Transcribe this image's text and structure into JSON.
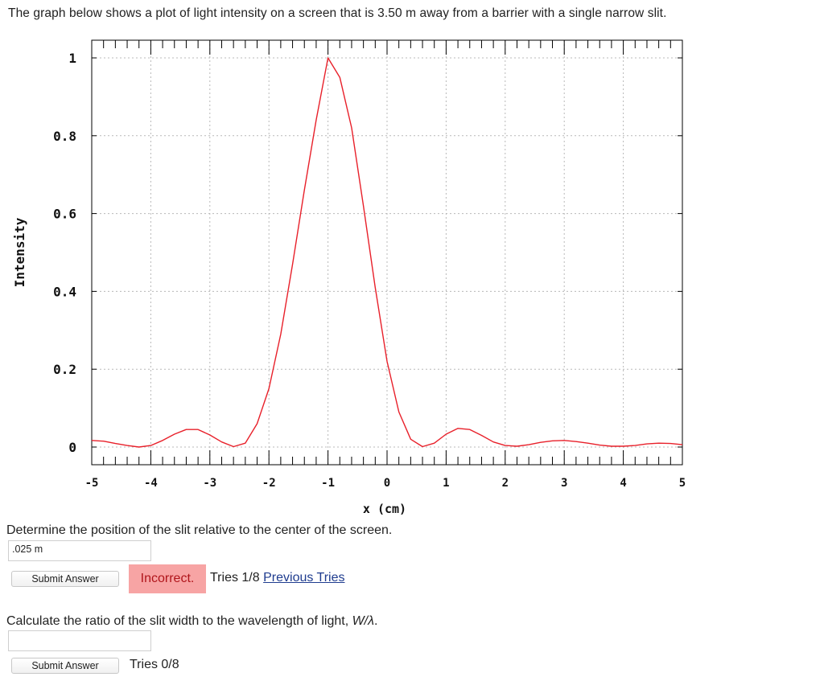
{
  "intro": "The graph below shows a plot of light intensity on a screen that is 3.50 m away from a barrier with a single narrow slit.",
  "chart_data": {
    "type": "line",
    "title": "",
    "xlabel": "x (cm)",
    "ylabel": "Intensity",
    "xlim": [
      -5,
      5
    ],
    "ylim": [
      0,
      1
    ],
    "x_ticks": [
      "-5",
      "-4",
      "-3",
      "-2",
      "-1",
      "0",
      "1",
      "2",
      "3",
      "4",
      "5"
    ],
    "y_ticks": [
      "0",
      "0.2",
      "0.4",
      "0.6",
      "0.8",
      "1"
    ],
    "grid": true,
    "series": [
      {
        "name": "",
        "color": "#e8202a",
        "x": [
          -5.0,
          -4.8,
          -4.6,
          -4.4,
          -4.2,
          -4.0,
          -3.8,
          -3.6,
          -3.4,
          -3.2,
          -3.0,
          -2.8,
          -2.6,
          -2.4,
          -2.2,
          -2.0,
          -1.8,
          -1.6,
          -1.4,
          -1.2,
          -1.0,
          -0.8,
          -0.6,
          -0.4,
          -0.2,
          0.0,
          0.2,
          0.4,
          0.6,
          0.8,
          1.0,
          1.2,
          1.4,
          1.6,
          1.8,
          2.0,
          2.2,
          2.4,
          2.6,
          2.8,
          3.0,
          3.2,
          3.4,
          3.6,
          3.8,
          4.0,
          4.2,
          4.4,
          4.6,
          4.8,
          5.0
        ],
        "values": [
          0.017,
          0.015,
          0.009,
          0.004,
          0.0,
          0.004,
          0.017,
          0.033,
          0.045,
          0.045,
          0.031,
          0.013,
          0.001,
          0.01,
          0.06,
          0.15,
          0.29,
          0.47,
          0.66,
          0.84,
          1.0,
          0.95,
          0.82,
          0.62,
          0.41,
          0.22,
          0.09,
          0.02,
          0.001,
          0.01,
          0.033,
          0.048,
          0.045,
          0.03,
          0.013,
          0.004,
          0.002,
          0.006,
          0.012,
          0.016,
          0.017,
          0.014,
          0.01,
          0.005,
          0.002,
          0.002,
          0.004,
          0.008,
          0.01,
          0.009,
          0.006
        ]
      }
    ]
  },
  "q1": {
    "text": "Determine the position of the slit relative to the center of the screen.",
    "answer": ".025 m",
    "submit": "Submit Answer",
    "status": "Incorrect.",
    "tries": "Tries 1/8",
    "previous": "Previous Tries"
  },
  "q2": {
    "text_before": "Calculate the ratio of the slit width to the wavelength of light, ",
    "text_var": "W/λ",
    "text_after": ".",
    "answer": "",
    "submit": "Submit Answer",
    "tries": "Tries 0/8"
  }
}
